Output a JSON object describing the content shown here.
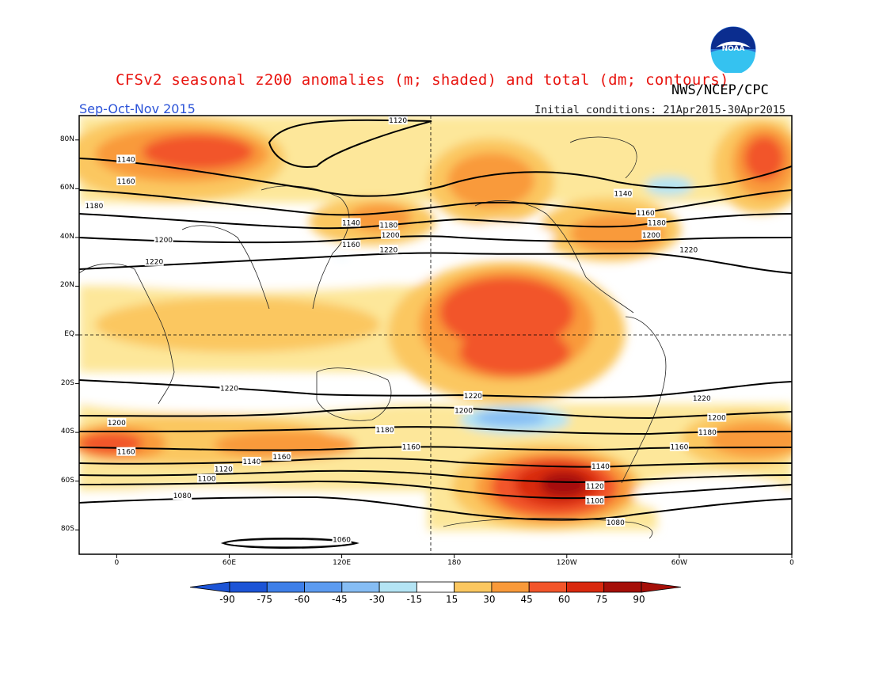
{
  "header": {
    "title": "CFSv2 seasonal z200 anomalies (m; shaded) and total (dm; contours)",
    "org": "NWS/NCEP/CPC",
    "season": "Sep-Oct-Nov 2015",
    "initial_conditions": "Initial conditions: 21Apr2015-30Apr2015",
    "logo_text": "NOAA"
  },
  "map": {
    "projection": "cylindrical equidistant",
    "lon_range": [
      -20,
      360
    ],
    "lat_range": [
      -90,
      90
    ],
    "lat_labels": [
      "80N",
      "60N",
      "40N",
      "20N",
      "EQ",
      "20S",
      "40S",
      "60S",
      "80S"
    ],
    "lat_values": [
      80,
      60,
      40,
      20,
      0,
      -20,
      -40,
      -60,
      -80
    ],
    "lon_labels": [
      "0",
      "60E",
      "120E",
      "180",
      "120W",
      "60W",
      "0"
    ],
    "lon_values": [
      0,
      60,
      120,
      180,
      240,
      300,
      360
    ],
    "reference_lines": [
      "EQ",
      "180"
    ]
  },
  "colors": {
    "neg90": "#1c54d6",
    "neg75": "#3e7fe8",
    "neg60": "#5c9bf0",
    "neg45": "#86bdf4",
    "neg30": "#b4e4f4",
    "neg15": "#ffffff",
    "pos15": "#fde79a",
    "pos30": "#fbc760",
    "pos45": "#f99a3a",
    "pos60": "#f2552a",
    "pos75": "#d9290e",
    "pos90": "#a50f08",
    "title": "#e8140f",
    "season": "#2b53d8"
  },
  "colorbar": {
    "labels": [
      "-90",
      "-75",
      "-60",
      "-45",
      "-30",
      "-15",
      "15",
      "30",
      "45",
      "60",
      "75",
      "90"
    ]
  },
  "contours": [
    {
      "level": "1120",
      "labels": [
        {
          "lon": 150,
          "lat": 88
        }
      ]
    },
    {
      "level": "1140",
      "labels": [
        {
          "lon": 5,
          "lat": 72
        },
        {
          "lon": 125,
          "lat": 46
        },
        {
          "lon": 270,
          "lat": 58
        }
      ]
    },
    {
      "level": "1160",
      "labels": [
        {
          "lon": 5,
          "lat": 63
        },
        {
          "lon": 125,
          "lat": 37
        },
        {
          "lon": 282,
          "lat": 50
        },
        {
          "lon": 5,
          "lat": -48
        },
        {
          "lon": 88,
          "lat": -50
        },
        {
          "lon": 157,
          "lat": -46
        },
        {
          "lon": 300,
          "lat": -46
        }
      ]
    },
    {
      "level": "1180",
      "labels": [
        {
          "lon": -12,
          "lat": 53
        },
        {
          "lon": 145,
          "lat": 45
        },
        {
          "lon": 288,
          "lat": 46
        },
        {
          "lon": 143,
          "lat": -39
        },
        {
          "lon": 315,
          "lat": -40
        }
      ]
    },
    {
      "level": "1200",
      "labels": [
        {
          "lon": 25,
          "lat": 39
        },
        {
          "lon": 146,
          "lat": 41
        },
        {
          "lon": 285,
          "lat": 41
        },
        {
          "lon": 0,
          "lat": -36
        },
        {
          "lon": 185,
          "lat": -31
        },
        {
          "lon": 320,
          "lat": -34
        }
      ]
    },
    {
      "level": "1220",
      "labels": [
        {
          "lon": 20,
          "lat": 30
        },
        {
          "lon": 145,
          "lat": 35
        },
        {
          "lon": 305,
          "lat": 35
        },
        {
          "lon": 60,
          "lat": -22
        },
        {
          "lon": 190,
          "lat": -25
        },
        {
          "lon": 312,
          "lat": -26
        }
      ]
    },
    {
      "level": "1140",
      "labels": [
        {
          "lon": 72,
          "lat": -52
        },
        {
          "lon": 258,
          "lat": -54
        }
      ]
    },
    {
      "level": "1120",
      "labels": [
        {
          "lon": 57,
          "lat": -55
        },
        {
          "lon": 255,
          "lat": -62
        }
      ]
    },
    {
      "level": "1100",
      "labels": [
        {
          "lon": 48,
          "lat": -59
        },
        {
          "lon": 255,
          "lat": -68
        }
      ]
    },
    {
      "level": "1080",
      "labels": [
        {
          "lon": 35,
          "lat": -66
        },
        {
          "lon": 266,
          "lat": -77
        }
      ]
    },
    {
      "level": "1060",
      "labels": [
        {
          "lon": 120,
          "lat": -84
        }
      ]
    }
  ]
}
